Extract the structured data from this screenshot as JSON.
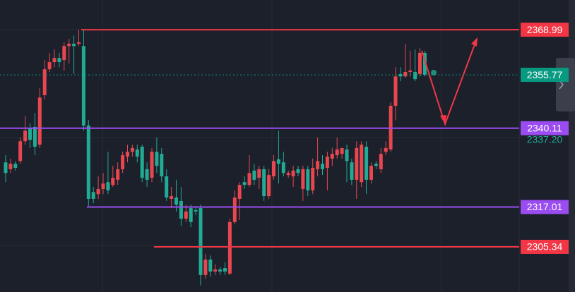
{
  "chart_data": {
    "type": "candlestick",
    "ylim": [
      2292.1,
      2377.7
    ],
    "up_color": "#e8474f",
    "down_color": "#22ab94",
    "candles": [
      [
        2330.1,
        2332.2,
        2324.3,
        2327.0
      ],
      [
        2328.1,
        2331.2,
        2327.0,
        2329.7
      ],
      [
        2329.7,
        2330.5,
        2327.7,
        2328.5
      ],
      [
        2330.5,
        2337.4,
        2329.7,
        2336.3
      ],
      [
        2336.3,
        2343.6,
        2335.3,
        2339.4
      ],
      [
        2340.1,
        2341.5,
        2334.3,
        2336.7
      ],
      [
        2340.5,
        2344.6,
        2332.2,
        2334.7
      ],
      [
        2335.3,
        2351.8,
        2334.3,
        2349.1
      ],
      [
        2349.8,
        2360.1,
        2348.7,
        2357.4
      ],
      [
        2357.4,
        2362.2,
        2356.6,
        2359.5
      ],
      [
        2359.5,
        2363.2,
        2358.0,
        2360.7
      ],
      [
        2360.7,
        2362.2,
        2358.0,
        2359.5
      ],
      [
        2360.1,
        2365.3,
        2357.0,
        2364.2
      ],
      [
        2364.2,
        2366.3,
        2359.1,
        2364.9
      ],
      [
        2364.9,
        2367.3,
        2356.0,
        2364.2
      ],
      [
        2364.9,
        2368.99,
        2364.2,
        2365.3
      ],
      [
        2364.2,
        2368.99,
        2339.4,
        2340.9
      ],
      [
        2340.9,
        2342.5,
        2317.3,
        2319.4
      ],
      [
        2321.4,
        2322.9,
        2318.1,
        2319.4
      ],
      [
        2320.8,
        2326.0,
        2319.4,
        2322.3
      ],
      [
        2322.3,
        2327.0,
        2320.8,
        2323.9
      ],
      [
        2324.3,
        2333.2,
        2320.8,
        2321.9
      ],
      [
        2323.5,
        2329.1,
        2322.9,
        2325.6
      ],
      [
        2325.0,
        2330.1,
        2323.5,
        2328.1
      ],
      [
        2328.1,
        2333.2,
        2327.0,
        2332.2
      ],
      [
        2331.8,
        2335.3,
        2330.1,
        2333.2
      ],
      [
        2333.2,
        2335.3,
        2331.8,
        2334.3
      ],
      [
        2333.9,
        2335.3,
        2330.1,
        2331.8
      ],
      [
        2334.7,
        2335.3,
        2324.3,
        2325.6
      ],
      [
        2328.1,
        2330.1,
        2322.9,
        2325.0
      ],
      [
        2325.6,
        2334.3,
        2324.3,
        2333.2
      ],
      [
        2333.2,
        2337.4,
        2327.0,
        2329.1
      ],
      [
        2332.6,
        2334.3,
        2324.3,
        2326.0
      ],
      [
        2326.0,
        2328.1,
        2318.8,
        2319.8
      ],
      [
        2319.4,
        2322.9,
        2316.7,
        2320.2
      ],
      [
        2319.8,
        2325.0,
        2315.7,
        2317.7
      ],
      [
        2318.8,
        2322.9,
        2311.5,
        2313.6
      ],
      [
        2313.6,
        2317.7,
        2312.6,
        2315.7
      ],
      [
        2316.7,
        2317.7,
        2311.1,
        2312.6
      ],
      [
        2316.1,
        2317.3,
        2314.6,
        2315.7
      ],
      [
        2316.7,
        2317.7,
        2294.0,
        2297.1
      ],
      [
        2297.1,
        2303.3,
        2296.0,
        2301.6
      ],
      [
        2301.6,
        2302.8,
        2296.6,
        2298.1
      ],
      [
        2298.1,
        2300.2,
        2297.1,
        2298.7
      ],
      [
        2298.7,
        2299.5,
        2297.1,
        2298.1
      ],
      [
        2299.1,
        2300.8,
        2297.1,
        2298.1
      ],
      [
        2297.5,
        2313.6,
        2297.1,
        2312.6
      ],
      [
        2312.6,
        2321.9,
        2311.9,
        2319.8
      ],
      [
        2319.4,
        2324.3,
        2313.2,
        2323.5
      ],
      [
        2324.3,
        2326.0,
        2322.3,
        2323.5
      ],
      [
        2323.5,
        2332.2,
        2322.9,
        2327.0
      ],
      [
        2327.7,
        2329.7,
        2323.5,
        2325.0
      ],
      [
        2325.6,
        2329.1,
        2322.3,
        2328.1
      ],
      [
        2328.1,
        2329.1,
        2318.8,
        2320.2
      ],
      [
        2320.2,
        2328.1,
        2319.4,
        2326.4
      ],
      [
        2326.0,
        2332.2,
        2325.0,
        2330.5
      ],
      [
        2331.0,
        2339.4,
        2323.9,
        2329.7
      ],
      [
        2330.1,
        2333.2,
        2326.0,
        2327.0
      ],
      [
        2326.4,
        2327.7,
        2325.6,
        2327.0
      ],
      [
        2326.0,
        2329.1,
        2322.9,
        2327.7
      ],
      [
        2328.1,
        2329.1,
        2326.0,
        2327.0
      ],
      [
        2322.3,
        2329.1,
        2318.8,
        2328.1
      ],
      [
        2328.1,
        2329.1,
        2320.2,
        2321.9
      ],
      [
        2321.9,
        2331.2,
        2320.8,
        2328.5
      ],
      [
        2328.1,
        2337.4,
        2326.0,
        2330.5
      ],
      [
        2329.7,
        2332.2,
        2326.4,
        2328.1
      ],
      [
        2328.5,
        2333.2,
        2321.9,
        2331.8
      ],
      [
        2331.2,
        2334.3,
        2329.1,
        2332.6
      ],
      [
        2332.2,
        2337.4,
        2331.2,
        2333.9
      ],
      [
        2332.6,
        2334.3,
        2331.2,
        2334.3
      ],
      [
        2333.9,
        2335.3,
        2324.3,
        2330.5
      ],
      [
        2330.1,
        2331.2,
        2323.5,
        2325.0
      ],
      [
        2325.0,
        2336.3,
        2319.4,
        2334.3
      ],
      [
        2324.3,
        2336.3,
        2322.9,
        2335.3
      ],
      [
        2334.7,
        2336.3,
        2320.8,
        2325.0
      ],
      [
        2325.0,
        2330.1,
        2323.9,
        2329.1
      ],
      [
        2329.7,
        2330.5,
        2328.1,
        2329.1
      ],
      [
        2328.1,
        2334.3,
        2327.0,
        2332.6
      ],
      [
        2333.2,
        2336.3,
        2332.2,
        2334.3
      ],
      [
        2333.9,
        2347.7,
        2333.2,
        2346.7
      ],
      [
        2346.7,
        2358.0,
        2342.5,
        2355.3
      ],
      [
        2356.0,
        2358.0,
        2353.9,
        2355.3
      ],
      [
        2355.3,
        2364.9,
        2354.9,
        2356.6
      ],
      [
        2356.6,
        2362.8,
        2355.3,
        2357.0
      ],
      [
        2356.6,
        2363.2,
        2353.9,
        2354.5
      ],
      [
        2356.0,
        2363.6,
        2355.3,
        2362.2
      ],
      [
        2362.2,
        2362.8,
        2355.3,
        2355.77
      ]
    ],
    "levels": [
      {
        "value": 2368.99,
        "color": "#f23645"
      },
      {
        "value": 2340.11,
        "color": "#9a4cf0"
      },
      {
        "value": 2317.01,
        "color": "#9a4cf0"
      },
      {
        "value": 2305.34,
        "color": "#f23645"
      }
    ],
    "last_price": {
      "value": 2355.77,
      "color": "#089981"
    },
    "secondary_label": {
      "value": 2337.2,
      "label": "2337.20",
      "color": "#22ab94"
    }
  }
}
